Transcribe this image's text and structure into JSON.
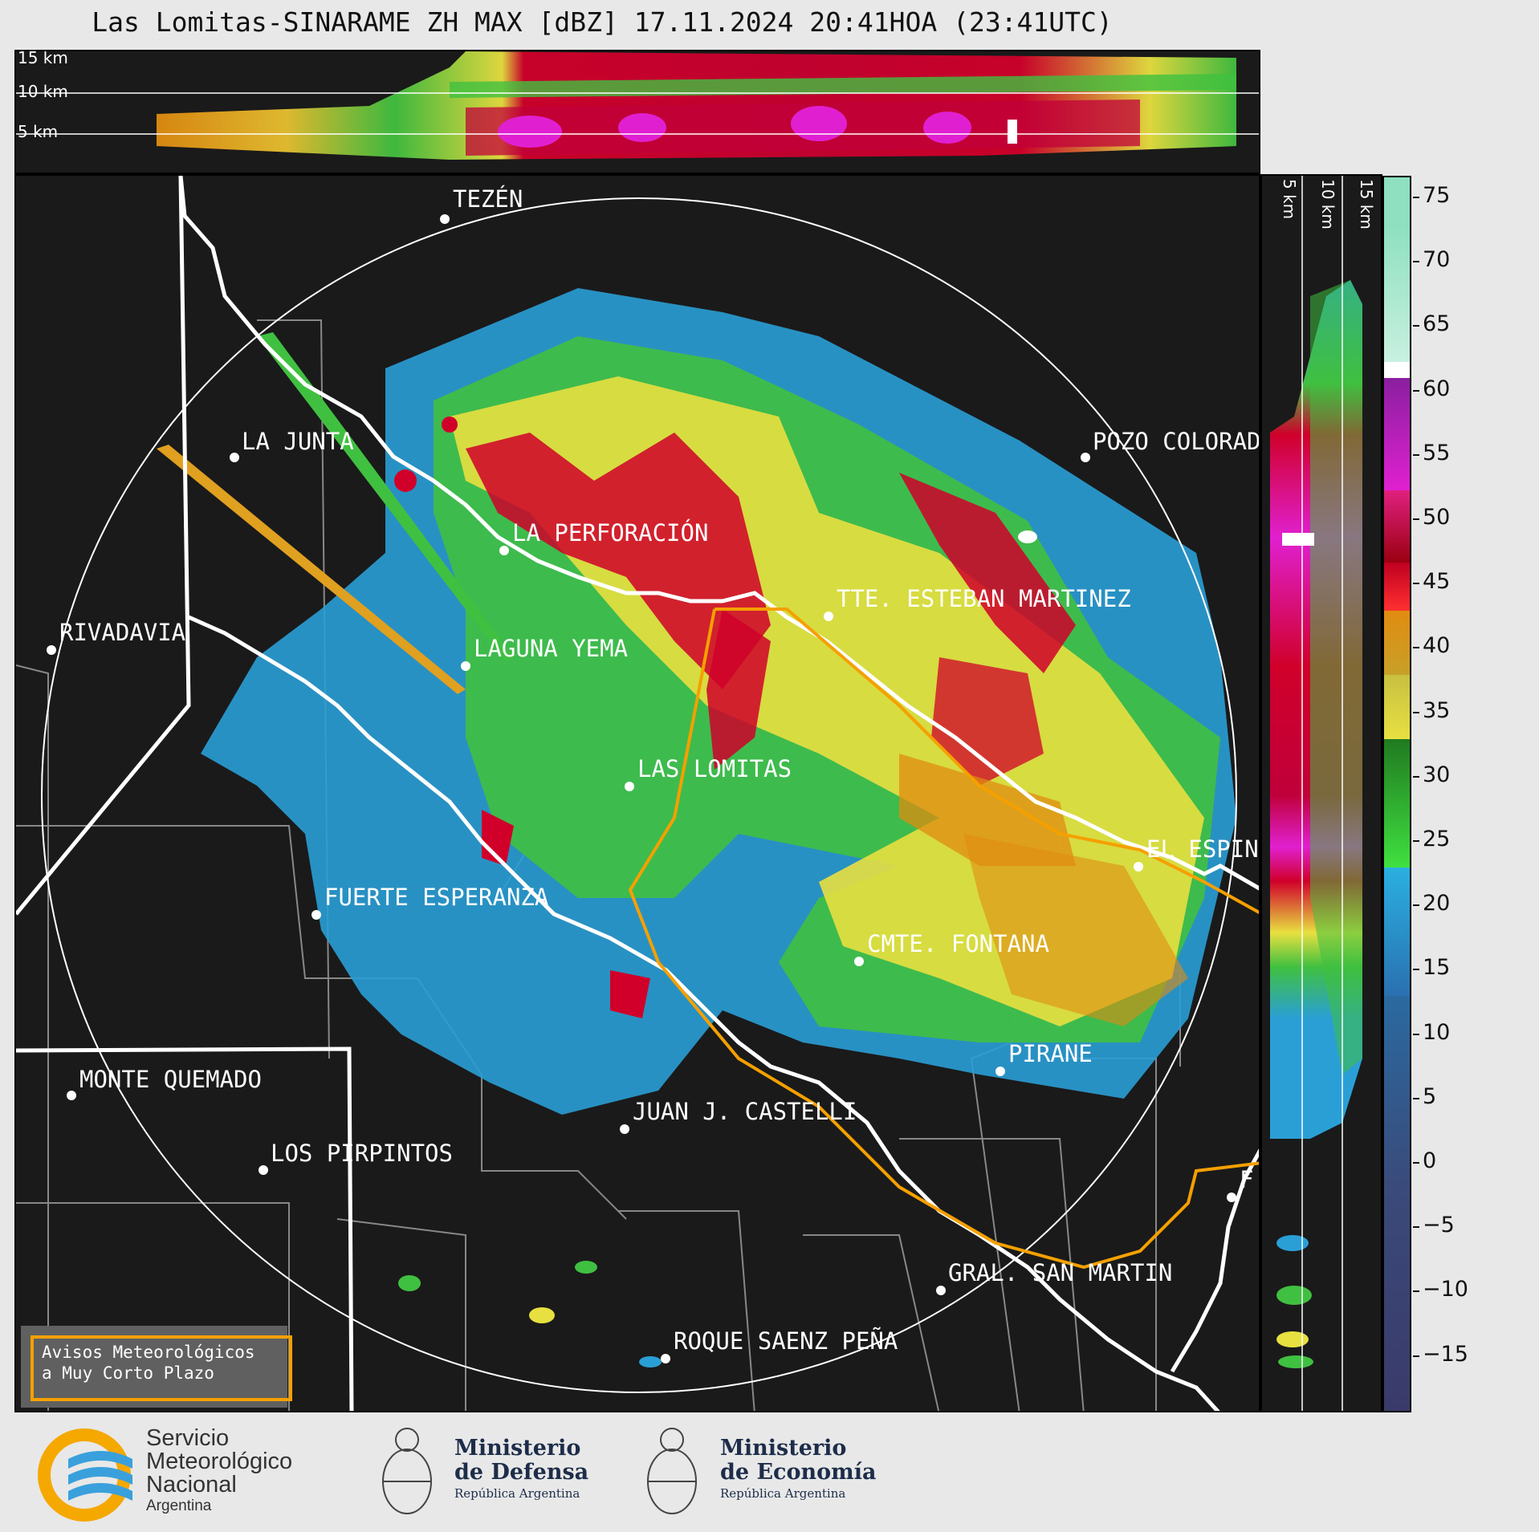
{
  "title": "Las Lomitas-SINARAME ZH MAX [dBZ] 17.11.2024 20:41HOA (23:41UTC)",
  "top_panel": {
    "height_labels": [
      "15 km",
      "10 km",
      "5 km"
    ]
  },
  "side_panel": {
    "height_labels": [
      "5 km",
      "10 km",
      "15 km"
    ]
  },
  "cities": [
    {
      "name": "TEZÉN"
    },
    {
      "name": "LA JUNTA"
    },
    {
      "name": "POZO COLORAD"
    },
    {
      "name": "LA PERFORACIÓN"
    },
    {
      "name": "TTE. ESTEBAN MARTINEZ"
    },
    {
      "name": "RIVADAVIA"
    },
    {
      "name": "LAGUNA YEMA"
    },
    {
      "name": "LAS LOMITAS"
    },
    {
      "name": "EL ESPIN"
    },
    {
      "name": "FUERTE ESPERANZA"
    },
    {
      "name": "CMTE. FONTANA"
    },
    {
      "name": "PIRANE"
    },
    {
      "name": "MONTE QUEMADO"
    },
    {
      "name": "JUAN J. CASTELLI"
    },
    {
      "name": "LOS PIRPINTOS"
    },
    {
      "name": "GRAL. SAN MARTIN"
    },
    {
      "name": "ROQUE SAENZ PEÑA"
    },
    {
      "name": "F"
    }
  ],
  "colorbar": {
    "unit": "dBZ",
    "ticks": [
      "75",
      "70",
      "65",
      "60",
      "55",
      "50",
      "45",
      "40",
      "35",
      "30",
      "25",
      "20",
      "15",
      "10",
      "5",
      "0",
      "−5",
      "−10",
      "−15"
    ],
    "colors": {
      "high": "#8ee0c0",
      "white": "#ffffff",
      "magenta": "#e020d0",
      "red": "#d0002a",
      "orange": "#e08c10",
      "yellow": "#e8e040",
      "dkgreen": "#207a20",
      "green": "#40d040",
      "blue": "#2a9fd6",
      "navy": "#2a3a6a"
    }
  },
  "avisos": {
    "line1": "Avisos Meteorológicos",
    "line2": "a Muy Corto Plazo"
  },
  "footer": {
    "smn_line1": "Servicio",
    "smn_line2": "Meteorológico",
    "smn_line3": "Nacional",
    "smn_line4": "Argentina",
    "def_line1": "Ministerio",
    "def_line2": "de Defensa",
    "def_line3": "República Argentina",
    "eco_line1": "Ministerio",
    "eco_line2": "de Economía",
    "eco_line3": "República Argentina"
  }
}
